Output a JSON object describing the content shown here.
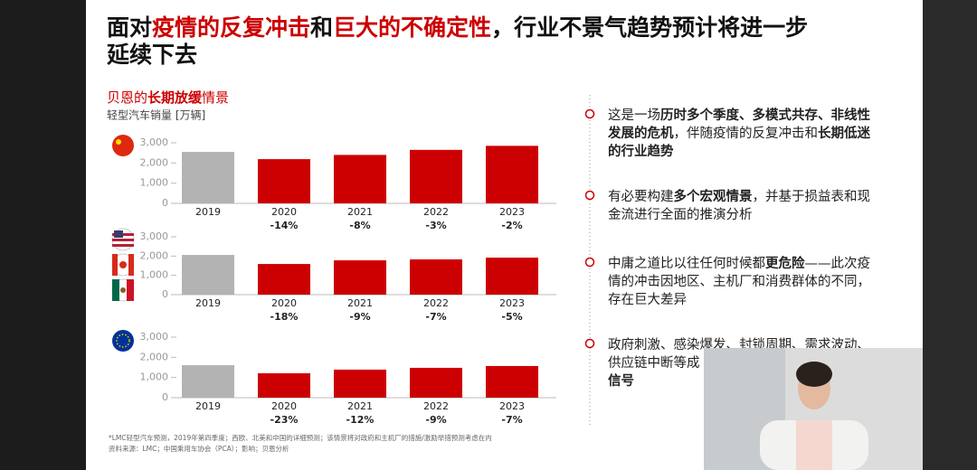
{
  "title": {
    "lines": [
      [
        {
          "text": "面对"
        },
        {
          "text": "疫情的反复冲击",
          "red": true
        },
        {
          "text": "和"
        },
        {
          "text": "巨大的不确定性",
          "red": true
        },
        {
          "text": "，行业不景气趋势预计将进一步"
        }
      ],
      [
        {
          "text": "延续下去"
        }
      ]
    ]
  },
  "subtitle": [
    {
      "text": "贝恩的"
    },
    {
      "text": "长期放缓",
      "bold": true
    },
    {
      "text": "情景"
    }
  ],
  "unit": "轻型汽车销量 [万辆]",
  "chart_data": [
    {
      "type": "bar",
      "categories": [
        "2019",
        "2020",
        "2021",
        "2022",
        "2023"
      ],
      "values": [
        2550,
        2190,
        2400,
        2650,
        2850
      ],
      "colors": [
        "#b3b3b3",
        "#cc0000",
        "#cc0000",
        "#cc0000",
        "#cc0000"
      ],
      "changes": [
        null,
        "-14%",
        "-8%",
        "-3%",
        "-2%"
      ],
      "ylim": [
        0,
        3000
      ],
      "yticks": [
        0,
        {
          "value": 1000,
          "label": "1,000"
        },
        {
          "value": 2000,
          "label": "2,000"
        },
        {
          "value": 3000,
          "label": "3,000"
        }
      ]
    },
    {
      "type": "bar",
      "categories": [
        "2019",
        "2020",
        "2021",
        "2022",
        "2023"
      ],
      "values": [
        2060,
        1590,
        1780,
        1830,
        1920
      ],
      "colors": [
        "#b3b3b3",
        "#cc0000",
        "#cc0000",
        "#cc0000",
        "#cc0000"
      ],
      "changes": [
        null,
        "-18%",
        "-9%",
        "-7%",
        "-5%"
      ],
      "ylim": [
        0,
        3000
      ],
      "yticks": [
        0,
        {
          "value": 1000,
          "label": "1,000"
        },
        {
          "value": 2000,
          "label": "2,000"
        },
        {
          "value": 3000,
          "label": "3,000"
        }
      ]
    },
    {
      "type": "bar",
      "categories": [
        "2019",
        "2020",
        "2021",
        "2022",
        "2023"
      ],
      "values": [
        1610,
        1210,
        1390,
        1480,
        1570
      ],
      "colors": [
        "#b3b3b3",
        "#cc0000",
        "#cc0000",
        "#cc0000",
        "#cc0000"
      ],
      "changes": [
        null,
        "-23%",
        "-12%",
        "-9%",
        "-7%"
      ],
      "ylim": [
        0,
        3000
      ],
      "yticks": [
        0,
        {
          "value": 1000,
          "label": "1,000"
        },
        {
          "value": 2000,
          "label": "2,000"
        },
        {
          "value": 3000,
          "label": "3,000"
        }
      ]
    }
  ],
  "bullets": [
    [
      [
        {
          "text": "这是一场"
        },
        {
          "text": "历时多个季度、多模式共存、非线性",
          "bold": true
        }
      ],
      [
        {
          "text": "发展的危机",
          "bold": true
        },
        {
          "text": "，伴随疫情的反复冲击和"
        },
        {
          "text": "长期低迷",
          "bold": true
        }
      ],
      [
        {
          "text": "的行业趋势",
          "bold": true
        }
      ]
    ],
    [
      [
        {
          "text": "有必要构建"
        },
        {
          "text": "多个宏观情景",
          "bold": true
        },
        {
          "text": "，并基于损益表和现"
        }
      ],
      [
        {
          "text": "金流进行全面的推演分析"
        }
      ]
    ],
    [
      [
        {
          "text": "中庸之道比以往任何时候都"
        },
        {
          "text": "更危险",
          "bold": true
        },
        {
          "text": "——此次疫"
        }
      ],
      [
        {
          "text": "情的冲击因地区、主机厂和消费群体的不同，"
        }
      ],
      [
        {
          "text": "存在巨大差异"
        }
      ]
    ],
    [
      [
        {
          "text": "政府刺激、感染爆发、封锁周期、需求波动、"
        }
      ],
      [
        {
          "text": "供应链中断等成"
        }
      ],
      [
        {
          "text": "信号",
          "bold": true
        }
      ]
    ]
  ],
  "footnotes": [
    "*LMC轻型汽车预测，2019年第四季度；西欧、北美和中国的详细预测；该情景将对政府和主机厂的措施/激励举措预测考虑在内",
    "资料来源：LMC；中国乘用车协会（PCA）；影响；贝恩分析"
  ]
}
